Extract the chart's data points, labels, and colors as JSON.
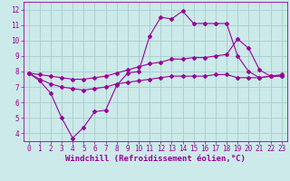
{
  "xlabel": "Windchill (Refroidissement éolien,°C)",
  "xlim": [
    -0.5,
    23.5
  ],
  "ylim": [
    3.5,
    12.5
  ],
  "yticks": [
    4,
    5,
    6,
    7,
    8,
    9,
    10,
    11,
    12
  ],
  "xticks": [
    0,
    1,
    2,
    3,
    4,
    5,
    6,
    7,
    8,
    9,
    10,
    11,
    12,
    13,
    14,
    15,
    16,
    17,
    18,
    19,
    20,
    21,
    22,
    23
  ],
  "bg_color": "#cceaea",
  "grid_color": "#aacccc",
  "line_color": "#990099",
  "line1_x": [
    0,
    1,
    2,
    3,
    4,
    5,
    6,
    7,
    8,
    9,
    10,
    11,
    12,
    13,
    14,
    15,
    16,
    17,
    18,
    19,
    20,
    21,
    22,
    23
  ],
  "line1_y": [
    7.9,
    7.4,
    6.6,
    5.0,
    3.7,
    4.4,
    5.4,
    5.5,
    7.1,
    7.9,
    8.0,
    10.3,
    11.5,
    11.4,
    11.9,
    11.1,
    11.1,
    11.1,
    11.1,
    9.0,
    8.0,
    7.6,
    7.7,
    7.7
  ],
  "line2_x": [
    0,
    1,
    2,
    3,
    4,
    5,
    6,
    7,
    8,
    9,
    10,
    11,
    12,
    13,
    14,
    15,
    16,
    17,
    18,
    19,
    20,
    21,
    22,
    23
  ],
  "line2_y": [
    7.9,
    7.8,
    7.7,
    7.6,
    7.5,
    7.5,
    7.6,
    7.7,
    7.9,
    8.1,
    8.3,
    8.5,
    8.6,
    8.8,
    8.8,
    8.9,
    8.9,
    9.0,
    9.1,
    10.1,
    9.5,
    8.1,
    7.7,
    7.7
  ],
  "line3_x": [
    0,
    1,
    2,
    3,
    4,
    5,
    6,
    7,
    8,
    9,
    10,
    11,
    12,
    13,
    14,
    15,
    16,
    17,
    18,
    19,
    20,
    21,
    22,
    23
  ],
  "line3_y": [
    7.9,
    7.5,
    7.2,
    7.0,
    6.9,
    6.8,
    6.9,
    7.0,
    7.2,
    7.3,
    7.4,
    7.5,
    7.6,
    7.7,
    7.7,
    7.7,
    7.7,
    7.8,
    7.8,
    7.6,
    7.6,
    7.6,
    7.7,
    7.8
  ],
  "marker": "D",
  "markersize": 2.0,
  "linewidth": 0.8,
  "xlabel_fontsize": 6.5,
  "tick_fontsize": 5.5
}
